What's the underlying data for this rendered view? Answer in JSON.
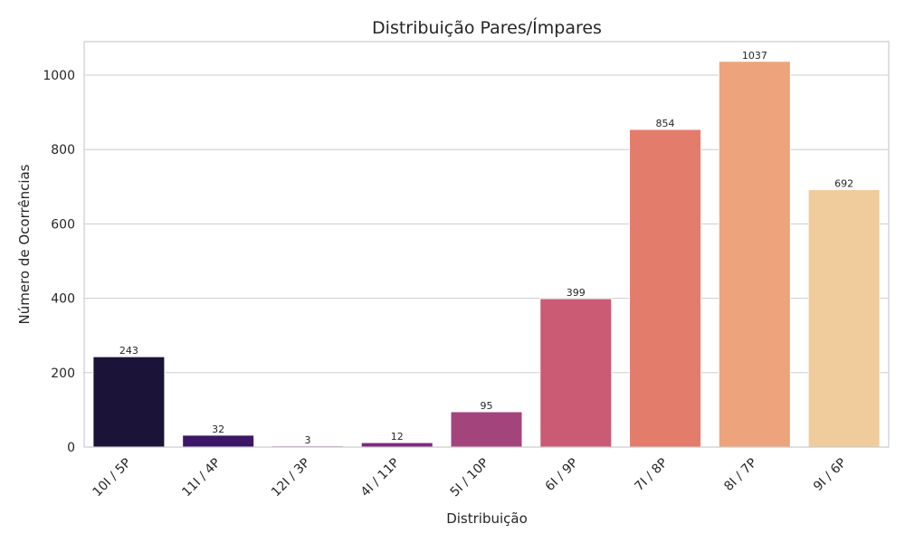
{
  "chart_data": {
    "type": "bar",
    "title": "Distribuição Pares/Ímpares",
    "xlabel": "Distribuição",
    "ylabel": "Número de Ocorrências",
    "categories": [
      "10I / 5P",
      "11I / 4P",
      "12I / 3P",
      "4I / 11P",
      "5I / 10P",
      "6I / 9P",
      "7I / 8P",
      "8I / 7P",
      "9I / 6P"
    ],
    "values": [
      243,
      32,
      3,
      12,
      95,
      399,
      854,
      1037,
      692
    ],
    "data_labels": [
      "243",
      "32",
      "3",
      "12",
      "95",
      "399",
      "854",
      "1037",
      "692"
    ],
    "colors": [
      "#1b1338",
      "#3c1767",
      "#5e1f7c",
      "#7e2882",
      "#a3447c",
      "#cb5a74",
      "#e47c6c",
      "#eda37b",
      "#f0cb9c"
    ],
    "ylim": [
      0,
      1090
    ],
    "yticks": [
      0,
      200,
      400,
      600,
      800,
      1000
    ],
    "ytick_labels": [
      "0",
      "200",
      "400",
      "600",
      "800",
      "1000"
    ],
    "grid": "horizontal",
    "legend": "none"
  }
}
